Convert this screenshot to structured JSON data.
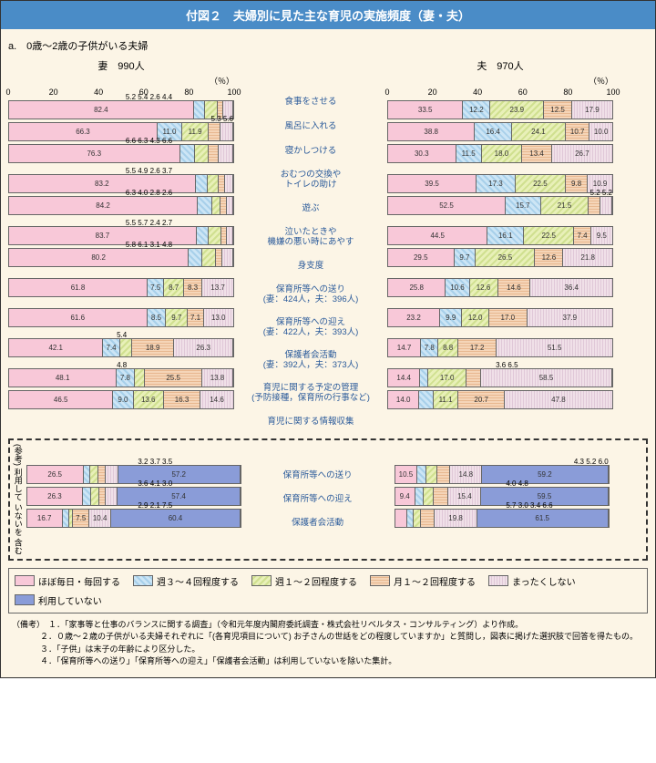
{
  "title": "付図２　夫婦別に見た主な育児の実施頻度（妻・夫）",
  "subtitle": "a.　0歳～2歳の子供がいる夫婦",
  "wife": {
    "label": "妻　990人"
  },
  "husband": {
    "label": "夫　970人"
  },
  "pct_label": "（％）",
  "ticks": [
    0,
    20,
    40,
    60,
    80,
    100
  ],
  "colors": {
    "c1": "#f8c8d8",
    "c2": "#cce5f5",
    "c3": "#e8f0b8",
    "c4": "#f5d5b8",
    "c5": "#f0e0e8",
    "c6": "#8a9cd8",
    "c2p": "repeating-linear-gradient(45deg,#cce5f5,#cce5f5 3px,#a8d0ea 3px,#a8d0ea 5px)",
    "c3p": "repeating-linear-gradient(-45deg,#e8f0b8,#e8f0b8 3px,#d0e090 3px,#d0e090 5px)",
    "c4p": "repeating-linear-gradient(0deg,#f5d5b8,#f5d5b8 2px,#e8b890 2px,#e8b890 3px)",
    "c5p": "repeating-linear-gradient(90deg,#f0e0e8,#f0e0e8 2px,#e0c8d8 2px,#e0c8d8 3px)"
  },
  "labels": [
    "食事をさせる",
    "風呂に入れる",
    "寝かしつける",
    "おむつの交換や\nトイレの助け",
    "遊ぶ",
    "泣いたときや\n機嫌の悪い時にあやす",
    "身支度",
    "保育所等への送り\n(妻：424人，夫：396人)",
    "保育所等への迎え\n(妻：422人，夫：393人)",
    "保護者会活動\n(妻：392人，夫：373人)",
    "育児に関する予定の管理\n(予防接種，保育所の行事など)",
    "育児に関する情報収集"
  ],
  "wife_rows": [
    {
      "v": [
        82.4,
        5.2,
        5.4,
        2.6,
        4.4
      ],
      "ext": "5.2 5.4 2.6 4.4"
    },
    {
      "v": [
        66.3,
        11.0,
        11.9,
        5.3,
        5.6
      ],
      "ext_r": "5.3 5.6"
    },
    {
      "v": [
        76.3,
        6.6,
        6.3,
        4.3,
        6.6
      ],
      "ext": "6.6 6.3 4.3 6.6"
    },
    {
      "v": [
        83.2,
        5.5,
        4.9,
        2.6,
        3.7
      ],
      "ext": "5.5 4.9 2.6 3.7"
    },
    {
      "v": [
        84.2,
        6.3,
        4.0,
        2.8,
        2.6
      ],
      "ext": "6.3 4.0 2.8 2.6"
    },
    {
      "v": [
        83.7,
        5.5,
        5.7,
        2.4,
        2.7
      ],
      "ext": "5.5 5.7 2.4 2.7"
    },
    {
      "v": [
        80.2,
        5.8,
        6.1,
        3.1,
        4.8
      ],
      "ext": "5.8 6.1 3.1 4.8"
    },
    {
      "v": [
        61.8,
        7.5,
        8.7,
        8.3,
        13.7
      ]
    },
    {
      "v": [
        61.6,
        8.5,
        9.7,
        7.1,
        13.0
      ]
    },
    {
      "v": [
        42.1,
        7.4,
        5.4,
        18.9,
        26.3
      ],
      "ext_c": "5.4"
    },
    {
      "v": [
        48.1,
        7.8,
        4.8,
        25.5,
        13.8
      ],
      "ext_c": "4.8"
    },
    {
      "v": [
        46.5,
        9.0,
        13.6,
        16.3,
        14.6
      ]
    }
  ],
  "husband_rows": [
    {
      "v": [
        33.5,
        12.2,
        23.9,
        12.5,
        17.9
      ]
    },
    {
      "v": [
        38.8,
        16.4,
        24.1,
        10.7,
        10.0
      ]
    },
    {
      "v": [
        30.3,
        11.5,
        18.0,
        13.4,
        26.7
      ]
    },
    {
      "v": [
        39.5,
        17.3,
        22.5,
        9.8,
        10.9
      ]
    },
    {
      "v": [
        52.5,
        15.7,
        21.5,
        5.2,
        5.2
      ],
      "ext_r": "5.2 5.2"
    },
    {
      "v": [
        44.5,
        16.1,
        22.5,
        7.4,
        9.5
      ]
    },
    {
      "v": [
        29.5,
        9.7,
        26.5,
        12.6,
        21.8
      ]
    },
    {
      "v": [
        25.8,
        10.6,
        12.6,
        14.6,
        36.4
      ]
    },
    {
      "v": [
        23.2,
        9.9,
        12.0,
        17.0,
        37.9
      ]
    },
    {
      "v": [
        14.7,
        7.8,
        8.8,
        17.2,
        51.5
      ]
    },
    {
      "v": [
        14.4,
        3.6,
        17.0,
        6.5,
        58.5
      ],
      "ext_c": "3.6 6.5"
    },
    {
      "v": [
        14.0,
        6.3,
        11.1,
        20.7,
        47.8
      ]
    }
  ],
  "ref_label": "(参考)\n利用して\nいないを\n含む",
  "ref_labels": [
    "保育所等への送り",
    "保育所等への迎え",
    "保護者会活動"
  ],
  "ref_wife": [
    {
      "v": [
        26.5,
        3.2,
        3.7,
        3.5,
        5.9,
        57.2
      ],
      "ext": "3.2 3.7 3.5"
    },
    {
      "v": [
        26.3,
        3.6,
        4.1,
        3.0,
        5.6,
        57.4
      ],
      "ext": "3.6 4.1 3.0"
    },
    {
      "v": [
        16.7,
        2.9,
        2.1,
        7.5,
        10.4,
        60.4
      ],
      "ext": "2.9 2.1 7.5"
    }
  ],
  "ref_husband": [
    {
      "v": [
        10.5,
        4.3,
        5.2,
        6.0,
        14.8,
        59.2
      ],
      "ext_r": "4.3 5.2 6.0"
    },
    {
      "v": [
        9.4,
        4.0,
        4.8,
        6.9,
        15.4,
        59.5
      ],
      "ext": "4.0 4.8"
    },
    {
      "v": [
        5.7,
        3.0,
        3.4,
        6.6,
        19.8,
        61.5
      ],
      "ext": "5.7 3.0 3.4 6.6"
    }
  ],
  "legend": [
    {
      "t": "ほぼ毎日・毎回する",
      "c": "c1"
    },
    {
      "t": "週３～４回程度する",
      "c": "c2p"
    },
    {
      "t": "週１～２回程度する",
      "c": "c3p"
    },
    {
      "t": "月１～２回程度する",
      "c": "c4p"
    },
    {
      "t": "まったくしない",
      "c": "c5p"
    },
    {
      "t": "利用していない",
      "c": "c6"
    }
  ],
  "notes_h": "（備考）",
  "notes": [
    "１．「家事等と仕事のバランスに関する調査」（令和元年度内閣府委託調査・株式会社リベルタス・コンサルティング）より作成。",
    "２．０歳～２歳の子供がいる夫婦それぞれに「(各育児項目について) お子さんの世話をどの程度していますか」と質問し，図表に掲げた選択肢で回答を得たもの。",
    "３．「子供」は末子の年齢により区分した。",
    "４．「保育所等への送り」「保育所等への迎え」「保護者会活動」は利用していないを除いた集計。"
  ]
}
